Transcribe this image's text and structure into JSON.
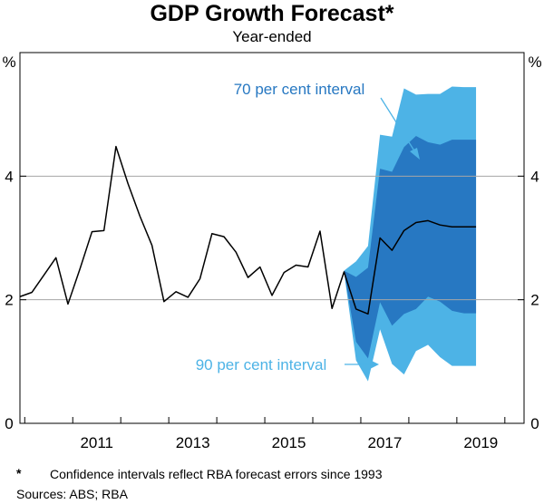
{
  "chart_data": {
    "type": "area",
    "title": "GDP Growth Forecast*",
    "subtitle": "Year-ended",
    "y_unit_left": "%",
    "y_unit_right": "%",
    "ylim": [
      0,
      6
    ],
    "y_ticks": [
      0,
      2,
      4
    ],
    "xlim": [
      2009.9,
      2020.4
    ],
    "x_ticks": [
      2011,
      2013,
      2015,
      2017,
      2019
    ],
    "x_tick_labels": [
      "2011",
      "2013",
      "2015",
      "2017",
      "2019"
    ],
    "grid": true,
    "series": [
      {
        "kind": "line",
        "x": [
          2009.9,
          2010.15,
          2010.4,
          2010.65,
          2010.9,
          2011.15,
          2011.4,
          2011.65,
          2011.9,
          2012.15,
          2012.4,
          2012.65,
          2012.9,
          2013.15,
          2013.4,
          2013.65,
          2013.9,
          2014.15,
          2014.4,
          2014.65,
          2014.9,
          2015.15,
          2015.4,
          2015.65,
          2015.9,
          2016.15,
          2016.4,
          2016.65,
          2016.9,
          2017.15,
          2017.4,
          2017.65,
          2017.9,
          2018.15,
          2018.4,
          2018.65,
          2018.9,
          2019.15,
          2019.4
        ],
        "y": [
          2.05,
          2.12,
          2.4,
          2.68,
          1.93,
          2.5,
          3.1,
          3.12,
          4.48,
          3.88,
          3.35,
          2.88,
          1.97,
          2.13,
          2.04,
          2.34,
          3.07,
          3.02,
          2.77,
          2.36,
          2.53,
          2.07,
          2.44,
          2.56,
          2.53,
          3.11,
          1.86,
          2.45,
          1.85,
          1.77,
          3.0,
          2.8,
          3.12,
          3.25,
          3.28,
          3.21,
          3.18,
          3.18,
          3.18
        ]
      }
    ],
    "bands": [
      {
        "name": "90 per cent interval",
        "color": "#4db3e6",
        "x": [
          2016.65,
          2016.9,
          2017.15,
          2017.4,
          2017.65,
          2017.9,
          2018.15,
          2018.4,
          2018.65,
          2018.9,
          2019.15,
          2019.4
        ],
        "upper": [
          2.47,
          2.62,
          2.87,
          4.67,
          4.64,
          5.42,
          5.32,
          5.33,
          5.33,
          5.45,
          5.44,
          5.44
        ],
        "lower": [
          2.45,
          1.02,
          0.68,
          1.52,
          0.96,
          0.79,
          1.17,
          1.27,
          1.07,
          0.93,
          0.93,
          0.93
        ]
      },
      {
        "name": "70 per cent interval",
        "color": "#2778c2",
        "x": [
          2016.65,
          2016.9,
          2017.15,
          2017.4,
          2017.65,
          2017.9,
          2018.15,
          2018.4,
          2018.65,
          2018.9,
          2019.15,
          2019.4
        ],
        "upper": [
          2.47,
          2.37,
          2.52,
          4.12,
          4.07,
          4.47,
          4.65,
          4.55,
          4.51,
          4.59,
          4.59,
          4.59
        ],
        "lower": [
          2.45,
          1.32,
          1.05,
          1.96,
          1.58,
          1.77,
          1.85,
          2.05,
          1.97,
          1.82,
          1.78,
          1.78
        ]
      }
    ],
    "annotations": [
      {
        "text": "70 per cent interval",
        "color": "#2778c2"
      },
      {
        "text": "90 per cent interval",
        "color": "#4db3e6"
      }
    ],
    "colors": {
      "line": "#000000",
      "grid": "#a6a6a6",
      "frame": "#000000"
    }
  },
  "footnote": {
    "marker": "*",
    "text": "Confidence intervals reflect RBA forecast errors since 1993"
  },
  "sources": "Sources: ABS; RBA"
}
